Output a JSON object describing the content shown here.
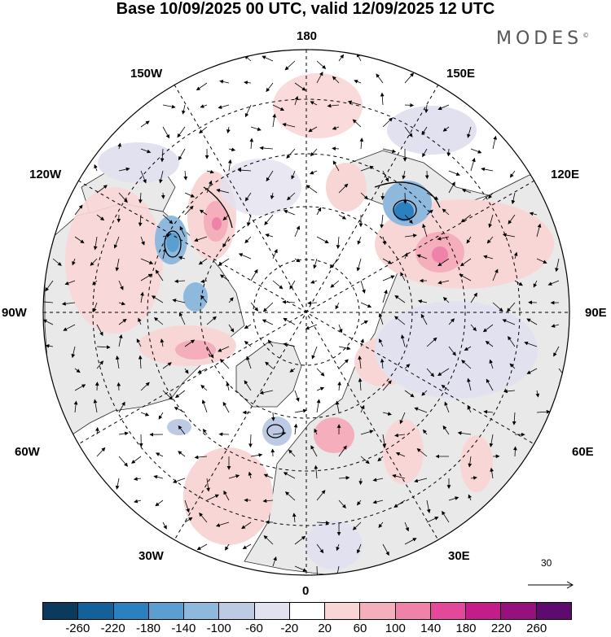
{
  "title": "Base 10/09/2025 00 UTC, valid 12/09/2025 12 UTC",
  "brand": {
    "name": "MODES",
    "mark": "©"
  },
  "longitude_labels": {
    "top": "180",
    "top_left": "150W",
    "top_right": "150E",
    "upper_left": "120W",
    "upper_right": "120E",
    "left": "90W",
    "right": "90E",
    "lower_left": "60W",
    "lower_right": "60E",
    "bottom_left": "30W",
    "bottom_right": "30E",
    "bottom": "0"
  },
  "reference_vector": {
    "value": "30"
  },
  "colorbar": {
    "colors": [
      "#0b3a5c",
      "#14609a",
      "#2b80c0",
      "#5a9fd0",
      "#8fb8dd",
      "#bccbe3",
      "#e2e1ef",
      "#ffffff",
      "#f9d6d6",
      "#f5aebb",
      "#ee82a8",
      "#e4489a",
      "#c41d8a",
      "#96107e",
      "#5e0a6e"
    ],
    "labels": [
      "-260",
      "-220",
      "-180",
      "-140",
      "-100",
      "-60",
      "-20",
      "20",
      "60",
      "100",
      "140",
      "180",
      "220",
      "260"
    ]
  },
  "colors": {
    "land": "#e9e9e9",
    "ocean": "#ffffff",
    "grid": "#000000",
    "coast": "#2b2b2b"
  },
  "icons": [
    "wind-vector-arrow-icon"
  ]
}
